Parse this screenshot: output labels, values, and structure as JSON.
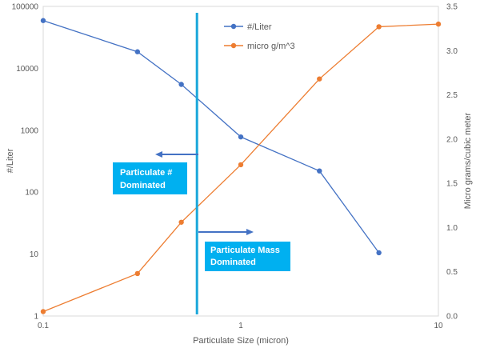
{
  "chart_data": {
    "type": "line",
    "title": "",
    "xlabel": "Particulate Size (micron)",
    "ylabel_left": "#/Liter",
    "ylabel_right": "Micro grams/cubic meter",
    "x_scale": "log",
    "xlim": [
      0.1,
      10
    ],
    "x_ticks": [
      "0.1",
      "1",
      "10"
    ],
    "y_left_scale": "log",
    "y_left_lim": [
      1,
      100000
    ],
    "y_left_ticks": [
      "1",
      "10",
      "100",
      "1000",
      "10000",
      "100000"
    ],
    "y_right_lim": [
      0,
      3.5
    ],
    "y_right_ticks": [
      "0.0",
      "0.5",
      "1.0",
      "1.5",
      "2.0",
      "2.5",
      "3.0",
      "3.5"
    ],
    "grid": false,
    "legend_position": "top-center",
    "series": [
      {
        "name": "#/Liter",
        "axis": "left",
        "color": "#4472C4",
        "points": [
          [
            0.1,
            59000
          ],
          [
            0.3,
            18500
          ],
          [
            0.5,
            5500
          ],
          [
            1.0,
            780
          ],
          [
            2.5,
            220
          ],
          [
            5.0,
            10.5
          ]
        ]
      },
      {
        "name": "micro g/m^3",
        "axis": "right",
        "color": "#ED7D31",
        "points": [
          [
            0.1,
            0.05
          ],
          [
            0.3,
            0.48
          ],
          [
            0.5,
            1.06
          ],
          [
            1.0,
            1.71
          ],
          [
            2.5,
            2.68
          ],
          [
            5.0,
            3.27
          ],
          [
            10.0,
            3.3
          ]
        ]
      }
    ],
    "annotations": {
      "divider": {
        "x": 0.6,
        "color": "#1AA7DA"
      },
      "left_label": {
        "lines": [
          "Particulate #",
          "Dominated"
        ],
        "color": "#00B0F0"
      },
      "right_label": {
        "lines": [
          "Particulate Mass",
          "Dominated"
        ],
        "color": "#00B0F0"
      },
      "arrow_color": "#4472C4"
    }
  }
}
